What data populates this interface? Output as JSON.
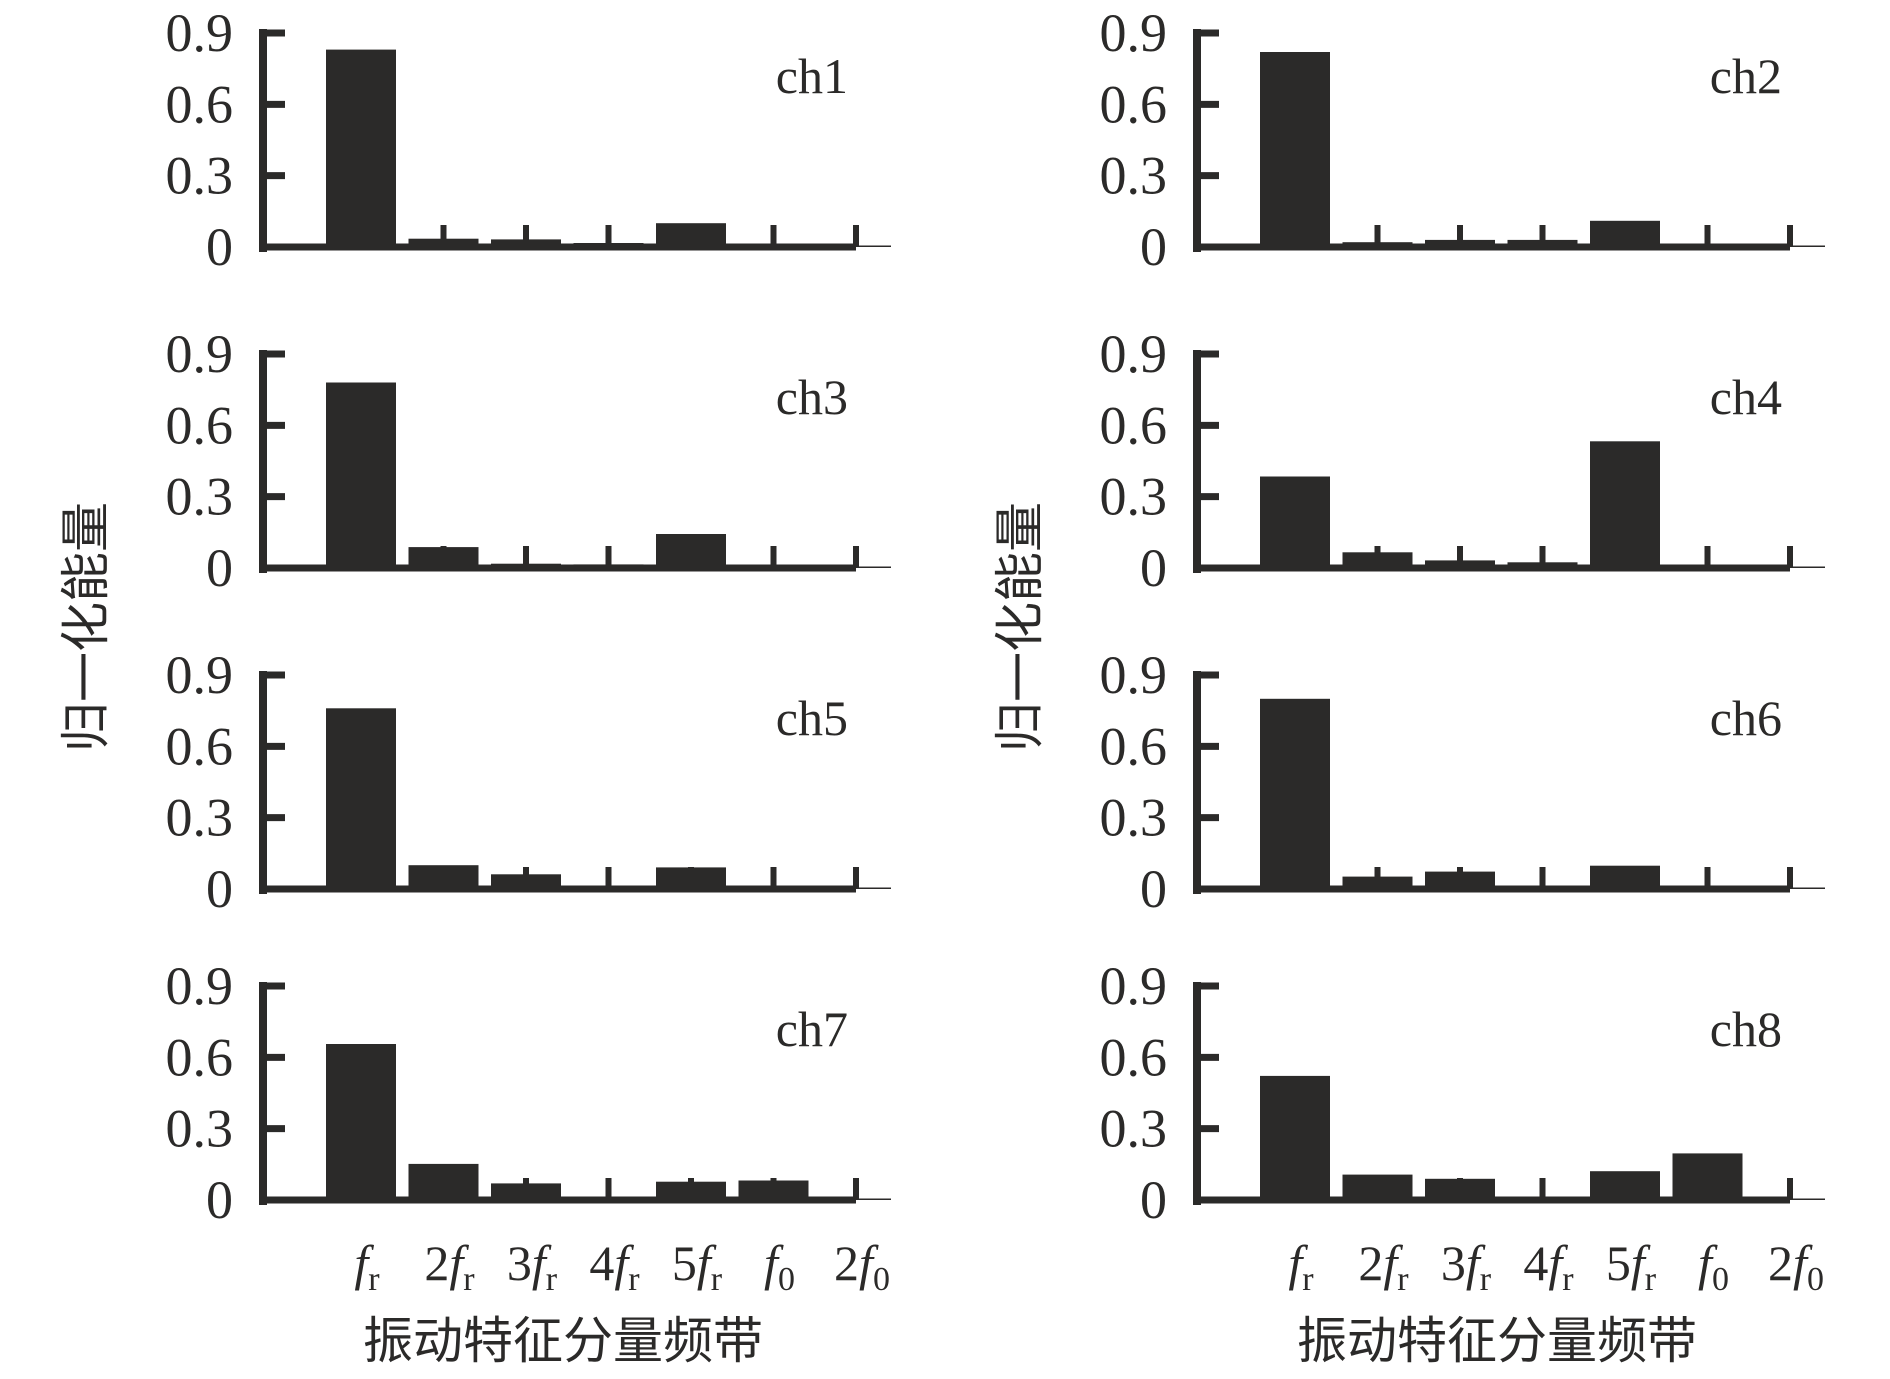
{
  "chart_data": {
    "type": "bar",
    "layout": "4x2 small multiples",
    "ylabel": "归一化能量",
    "xlabel": "振动特征分量频带",
    "ylim": [
      0,
      0.9
    ],
    "yticks": [
      "0",
      "0.3",
      "0.6",
      "0.9"
    ],
    "ytick_values": [
      0,
      0.3,
      0.6,
      0.9
    ],
    "bar_color": "#2b2a29",
    "categories": [
      {
        "num": "",
        "sym": "f",
        "sub": "r"
      },
      {
        "num": "2",
        "sym": "f",
        "sub": "r"
      },
      {
        "num": "3",
        "sym": "f",
        "sub": "r"
      },
      {
        "num": "4",
        "sym": "f",
        "sub": "r"
      },
      {
        "num": "5",
        "sym": "f",
        "sub": "r"
      },
      {
        "num": "",
        "sym": "f",
        "sub": "0"
      },
      {
        "num": "2",
        "sym": "f",
        "sub": "0"
      }
    ],
    "category_names": [
      "fr",
      "2fr",
      "3fr",
      "4fr",
      "5fr",
      "f0",
      "2f0"
    ],
    "series": [
      {
        "name": "ch1",
        "values": [
          0.83,
          0.035,
          0.032,
          0.017,
          0.1,
          0.01,
          0.005
        ]
      },
      {
        "name": "ch2",
        "values": [
          0.82,
          0.02,
          0.03,
          0.03,
          0.11,
          0.014,
          0.003
        ]
      },
      {
        "name": "ch3",
        "values": [
          0.78,
          0.088,
          0.018,
          0.015,
          0.143,
          0.002,
          0.001
        ]
      },
      {
        "name": "ch4",
        "values": [
          0.385,
          0.066,
          0.032,
          0.024,
          0.533,
          0.002,
          0.001
        ]
      },
      {
        "name": "ch5",
        "values": [
          0.76,
          0.1,
          0.062,
          0.002,
          0.091,
          0.005,
          0.001
        ]
      },
      {
        "name": "ch6",
        "values": [
          0.8,
          0.052,
          0.073,
          0.002,
          0.098,
          0.002,
          0.001
        ]
      },
      {
        "name": "ch7",
        "values": [
          0.656,
          0.152,
          0.07,
          0.005,
          0.077,
          0.082,
          0.001
        ]
      },
      {
        "name": "ch8",
        "values": [
          0.522,
          0.107,
          0.089,
          0.002,
          0.121,
          0.196,
          0.001
        ]
      }
    ]
  }
}
